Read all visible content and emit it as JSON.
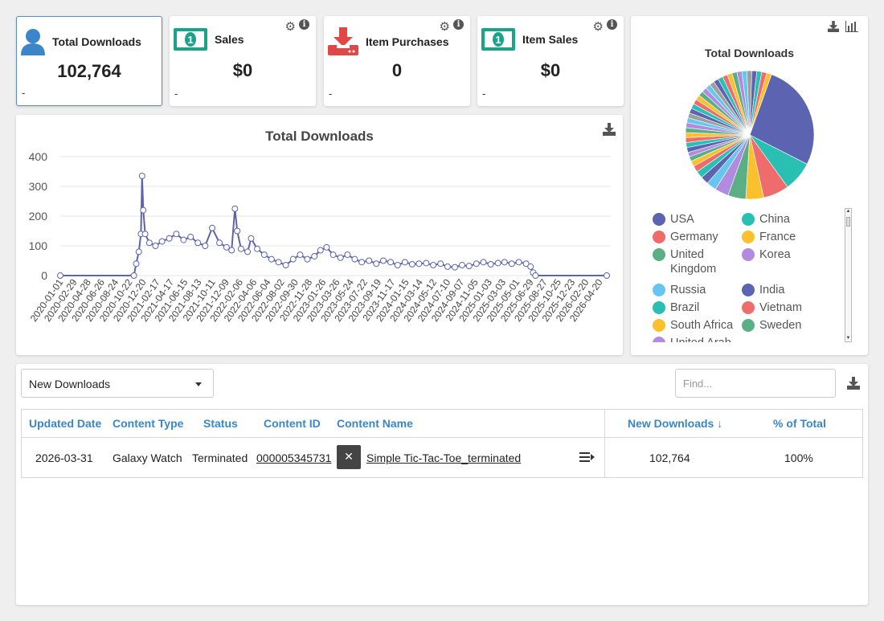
{
  "stats": [
    {
      "title": "Total Downloads",
      "value": "102,764",
      "footer": "-",
      "icon": "user-icon"
    },
    {
      "title": "Sales",
      "value": "$0",
      "footer": "-",
      "icon": "money-icon"
    },
    {
      "title": "Item Purchases",
      "value": "0",
      "footer": "-",
      "icon": "download-tray-icon"
    },
    {
      "title": "Item Sales",
      "value": "$0",
      "footer": "-",
      "icon": "money-icon"
    }
  ],
  "colors": {
    "series": "#5c63b1",
    "link": "#3a86c8",
    "money": "#1aa38a",
    "purchase": "#e04848"
  },
  "line_chart": {
    "title": "Total Downloads",
    "chart_data": {
      "type": "line",
      "title": "Total Downloads",
      "yticks": [
        0,
        100,
        200,
        300,
        400
      ],
      "ylim": [
        0,
        400
      ],
      "xlim": [
        "2020-01-01",
        "2026-05-20"
      ],
      "xticks": [
        "2020-01-01",
        "2020-02-29",
        "2020-04-28",
        "2020-06-26",
        "2020-08-24",
        "2020-10-22",
        "2020-12-20",
        "2021-02-17",
        "2021-04-17",
        "2021-06-15",
        "2021-08-13",
        "2021-10-11",
        "2021-12-09",
        "2022-02-06",
        "2022-04-06",
        "2022-06-04",
        "2022-08-02",
        "2022-09-30",
        "2022-11-28",
        "2023-01-26",
        "2023-03-26",
        "2023-05-24",
        "2023-07-22",
        "2023-09-19",
        "2023-11-17",
        "2024-01-15",
        "2024-03-14",
        "2024-05-12",
        "2024-07-10",
        "2024-09-07",
        "2024-11-05",
        "2025-01-03",
        "2025-03-03",
        "2025-05-01",
        "2025-06-29",
        "2025-08-27",
        "2025-10-25",
        "2025-12-23",
        "2026-02-20",
        "2026-04-20"
      ],
      "series": [
        {
          "points": [
            [
              "2020-01-01",
              0
            ],
            [
              "2020-11-10",
              0
            ],
            [
              "2020-11-20",
              40
            ],
            [
              "2020-12-01",
              80
            ],
            [
              "2020-12-10",
              140
            ],
            [
              "2020-12-15",
              335
            ],
            [
              "2020-12-20",
              220
            ],
            [
              "2020-12-28",
              140
            ],
            [
              "2021-01-15",
              110
            ],
            [
              "2021-02-10",
              100
            ],
            [
              "2021-03-10",
              115
            ],
            [
              "2021-04-10",
              125
            ],
            [
              "2021-05-10",
              140
            ],
            [
              "2021-06-10",
              120
            ],
            [
              "2021-07-10",
              130
            ],
            [
              "2021-08-10",
              110
            ],
            [
              "2021-09-10",
              100
            ],
            [
              "2021-10-10",
              160
            ],
            [
              "2021-11-10",
              110
            ],
            [
              "2021-12-10",
              95
            ],
            [
              "2022-01-01",
              85
            ],
            [
              "2022-01-15",
              225
            ],
            [
              "2022-01-25",
              150
            ],
            [
              "2022-02-10",
              90
            ],
            [
              "2022-03-10",
              80
            ],
            [
              "2022-03-25",
              125
            ],
            [
              "2022-04-20",
              90
            ],
            [
              "2022-05-20",
              70
            ],
            [
              "2022-06-20",
              55
            ],
            [
              "2022-07-20",
              45
            ],
            [
              "2022-08-20",
              35
            ],
            [
              "2022-09-20",
              55
            ],
            [
              "2022-10-20",
              70
            ],
            [
              "2022-11-20",
              55
            ],
            [
              "2022-12-20",
              65
            ],
            [
              "2023-01-15",
              85
            ],
            [
              "2023-02-10",
              95
            ],
            [
              "2023-03-10",
              70
            ],
            [
              "2023-04-10",
              60
            ],
            [
              "2023-05-10",
              70
            ],
            [
              "2023-06-10",
              55
            ],
            [
              "2023-07-10",
              45
            ],
            [
              "2023-08-10",
              50
            ],
            [
              "2023-09-10",
              40
            ],
            [
              "2023-10-10",
              50
            ],
            [
              "2023-11-10",
              45
            ],
            [
              "2023-12-10",
              35
            ],
            [
              "2024-01-10",
              45
            ],
            [
              "2024-02-10",
              38
            ],
            [
              "2024-03-10",
              40
            ],
            [
              "2024-04-10",
              42
            ],
            [
              "2024-05-10",
              35
            ],
            [
              "2024-06-10",
              40
            ],
            [
              "2024-07-10",
              30
            ],
            [
              "2024-08-10",
              28
            ],
            [
              "2024-09-10",
              35
            ],
            [
              "2024-10-10",
              32
            ],
            [
              "2024-11-10",
              40
            ],
            [
              "2024-12-10",
              45
            ],
            [
              "2025-01-10",
              38
            ],
            [
              "2025-02-10",
              42
            ],
            [
              "2025-03-10",
              45
            ],
            [
              "2025-04-10",
              40
            ],
            [
              "2025-05-10",
              45
            ],
            [
              "2025-06-10",
              40
            ],
            [
              "2025-06-29",
              30
            ],
            [
              "2025-07-10",
              10
            ],
            [
              "2025-07-20",
              0
            ],
            [
              "2026-05-20",
              0
            ]
          ]
        }
      ]
    }
  },
  "pie": {
    "title": "Total Downloads",
    "chart_data": {
      "type": "pie",
      "slices": [
        {
          "name": "USA",
          "value": 27,
          "color": "#5c63b1"
        },
        {
          "name": "China",
          "value": 7.5,
          "color": "#2abfb3"
        },
        {
          "name": "Germany",
          "value": 6.5,
          "color": "#ee6c6c"
        },
        {
          "name": "France",
          "value": 4.5,
          "color": "#fbc02d"
        },
        {
          "name": "United Kingdom",
          "value": 4.5,
          "color": "#5aaf86"
        },
        {
          "name": "Korea",
          "value": 3.5,
          "color": "#b18be0"
        },
        {
          "name": "Russia",
          "value": 2.5,
          "color": "#67c6f0"
        },
        {
          "name": "India",
          "value": 2,
          "color": "#5c63b1"
        },
        {
          "name": "Brazil",
          "value": 1.8,
          "color": "#2abfb3"
        },
        {
          "name": "Vietnam",
          "value": 1.6,
          "color": "#ee6c6c"
        },
        {
          "name": "South Africa",
          "value": 1.4,
          "color": "#fbc02d"
        },
        {
          "name": "Sweden",
          "value": 1.2,
          "color": "#5aaf86"
        },
        {
          "name": "United Arab Emirates",
          "value": 1.1,
          "color": "#b18be0"
        }
      ]
    }
  },
  "table": {
    "dropdown": "New Downloads",
    "find_placeholder": "Find...",
    "headers": {
      "updated": "Updated Date",
      "type": "Content Type",
      "status": "Status",
      "id": "Content ID",
      "name": "Content Name",
      "new": "New Downloads ↓",
      "pct": "% of Total"
    },
    "rows": [
      {
        "updated": "2026-03-31",
        "type": "Galaxy Watch",
        "status": "Terminated",
        "id": "000005345731",
        "name": "Simple Tic-Tac-Toe_terminated",
        "new": "102,764",
        "pct": "100%"
      }
    ]
  }
}
